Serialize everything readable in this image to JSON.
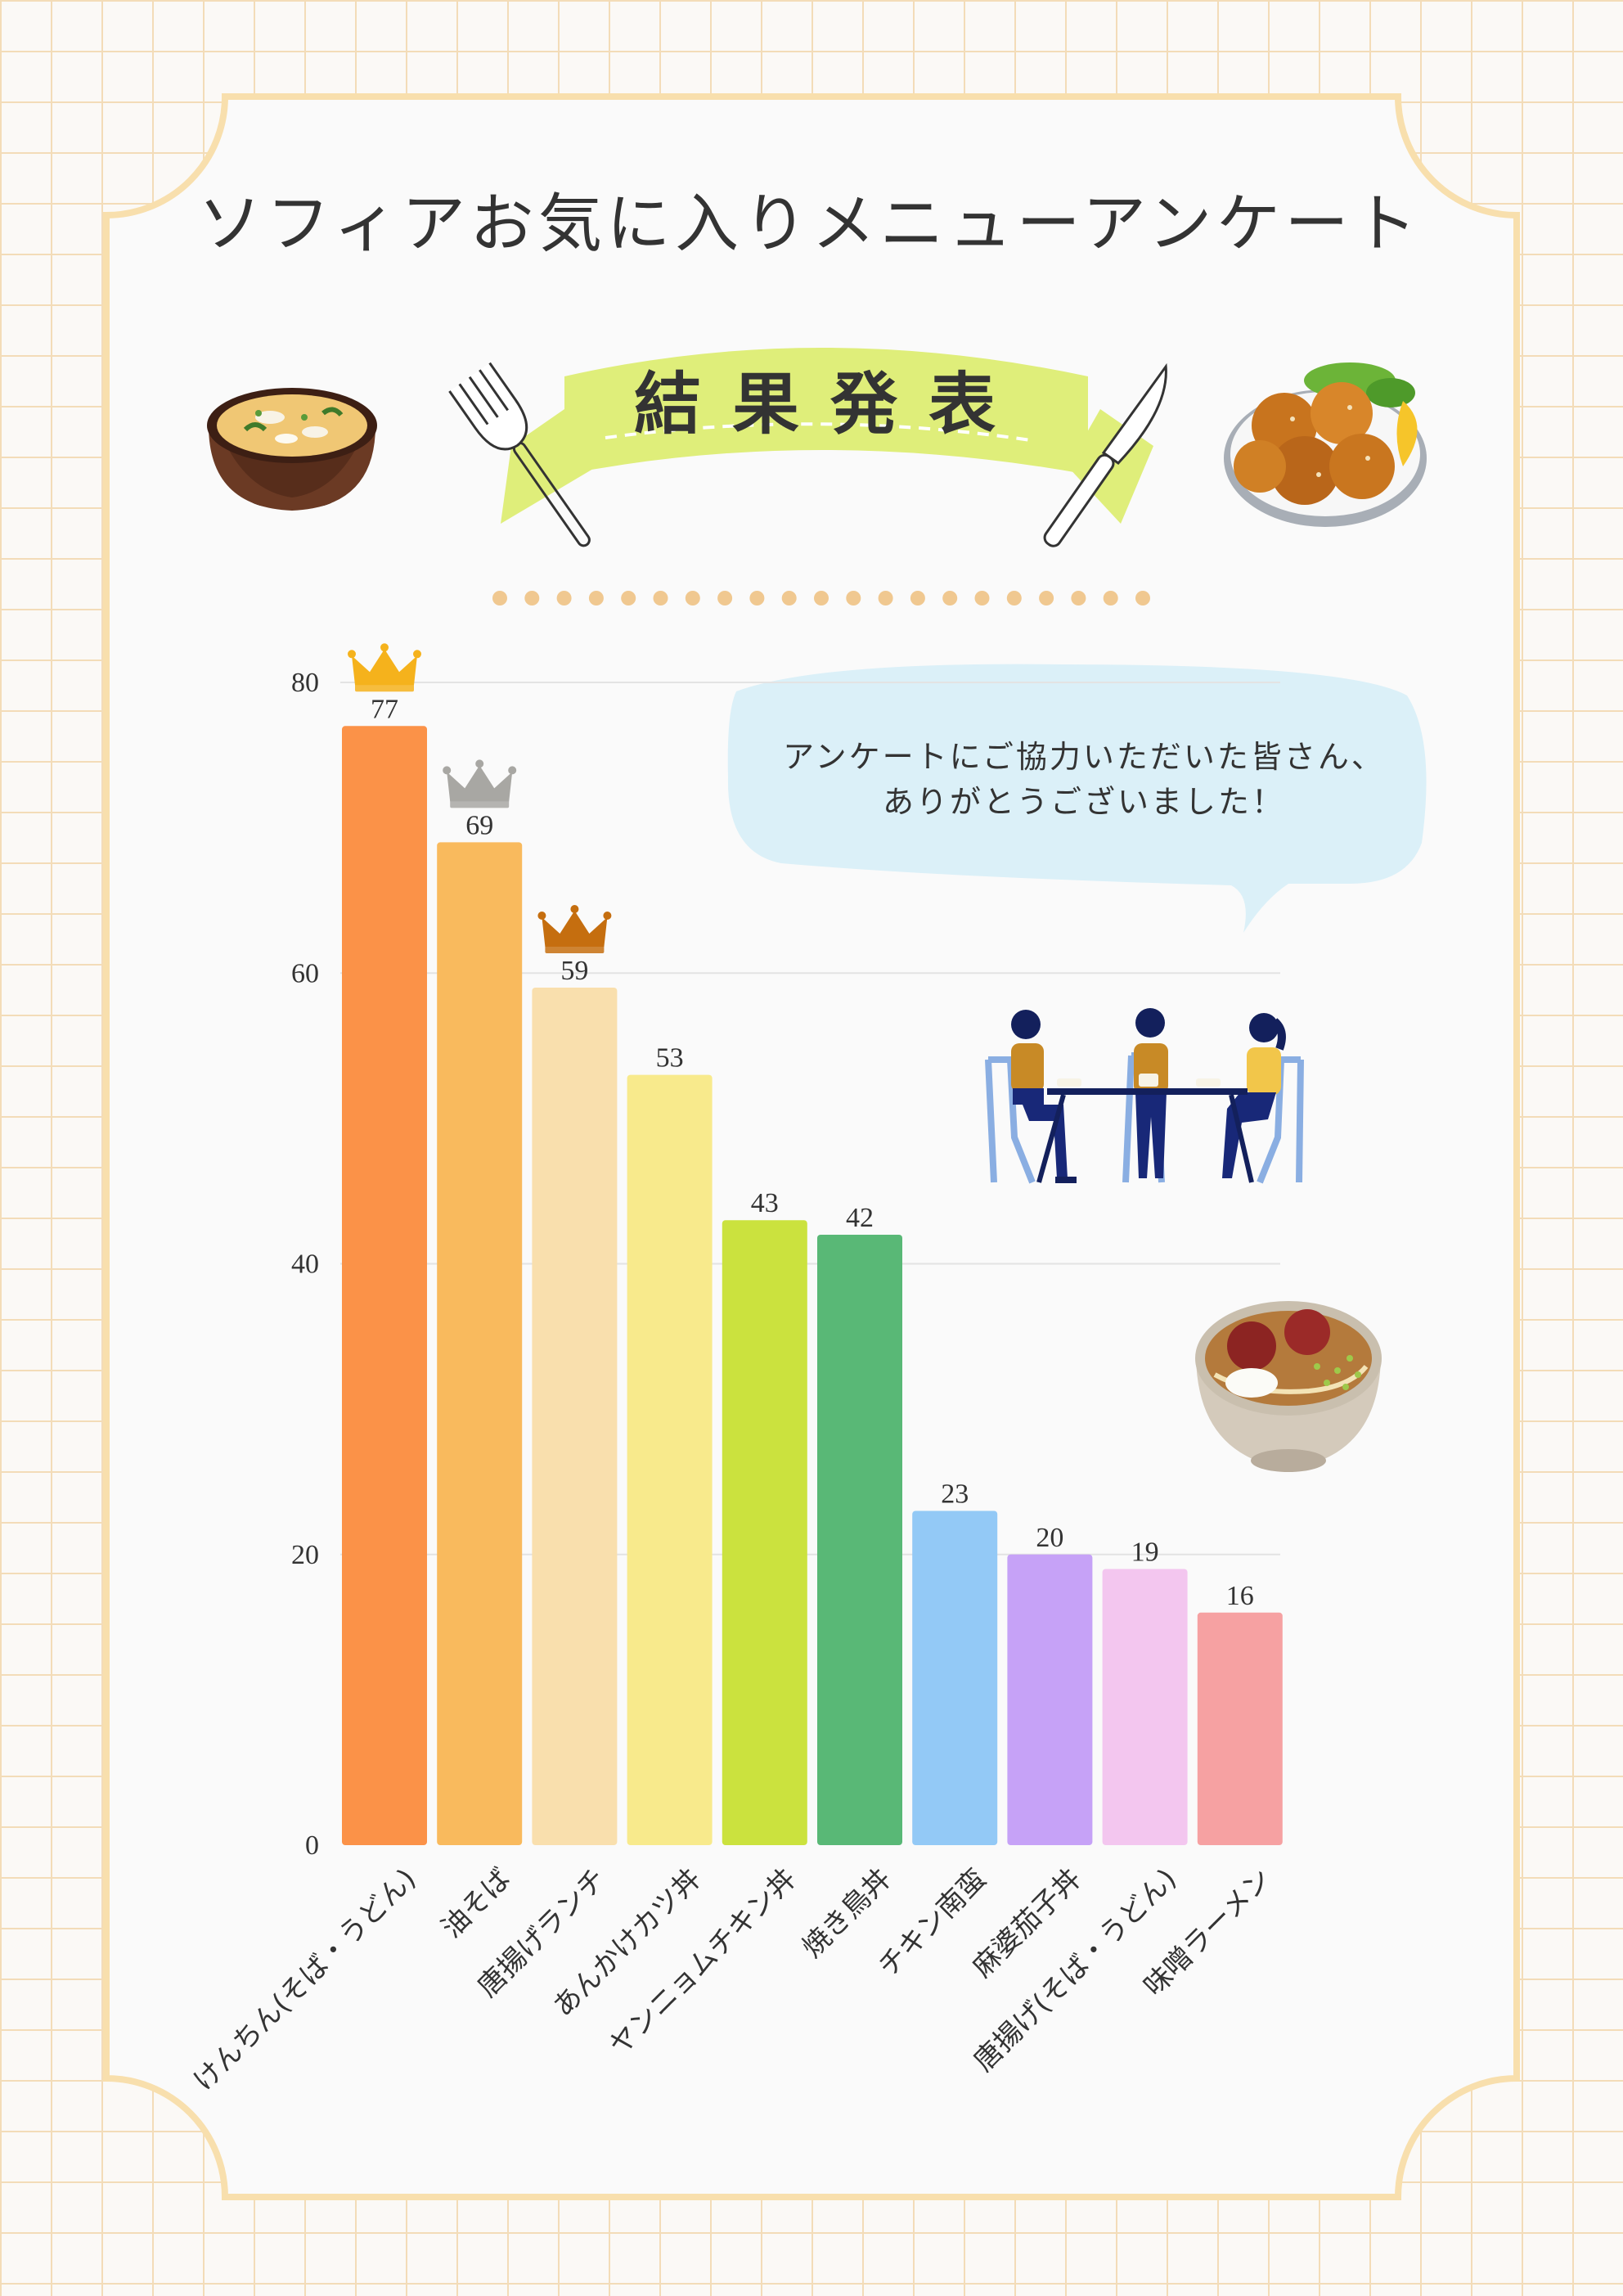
{
  "title": "ソフィアお気に入りメニューアンケート",
  "ribbon": "結果発表",
  "bubble": {
    "line1": "アンケートにご協力いただいた皆さん、",
    "line2": "ありがとうございました！"
  },
  "colors": {
    "frame": "#f8dfad",
    "ribbon": "#dfee7a",
    "bubble": "#dbf0f8",
    "dots": "#f0c890"
  },
  "icons": [
    "miso-soup-icon",
    "fork-icon",
    "knife-icon",
    "karaage-plate-icon",
    "diners-illustration",
    "ramen-bowl-icon",
    "crown-icon"
  ],
  "chart_data": {
    "type": "bar",
    "categories": [
      "けんちん(そば・うどん)",
      "油そば",
      "唐揚げランチ",
      "あんかけカツ丼",
      "ヤンニョムチキン丼",
      "焼き鳥丼",
      "チキン南蛮",
      "麻婆茄子丼",
      "唐揚げ(そば・うどん)",
      "味噌ラーメン"
    ],
    "values": [
      77,
      69,
      59,
      53,
      43,
      42,
      23,
      20,
      19,
      16
    ],
    "colors": [
      "#fb9248",
      "#f9ba5d",
      "#f9dfad",
      "#f8ea8c",
      "#cbe23e",
      "#59b876",
      "#93c9f6",
      "#c6a2f7",
      "#f3c6ef",
      "#f6a1a2"
    ],
    "yticks": [
      0,
      20,
      40,
      60,
      80
    ],
    "ylim": [
      0,
      80
    ],
    "grid": true,
    "crowns": [
      {
        "rank": 1,
        "color": "#f5b21c"
      },
      {
        "rank": 2,
        "color": "#a8a7a3"
      },
      {
        "rank": 3,
        "color": "#c56e0f"
      }
    ]
  }
}
